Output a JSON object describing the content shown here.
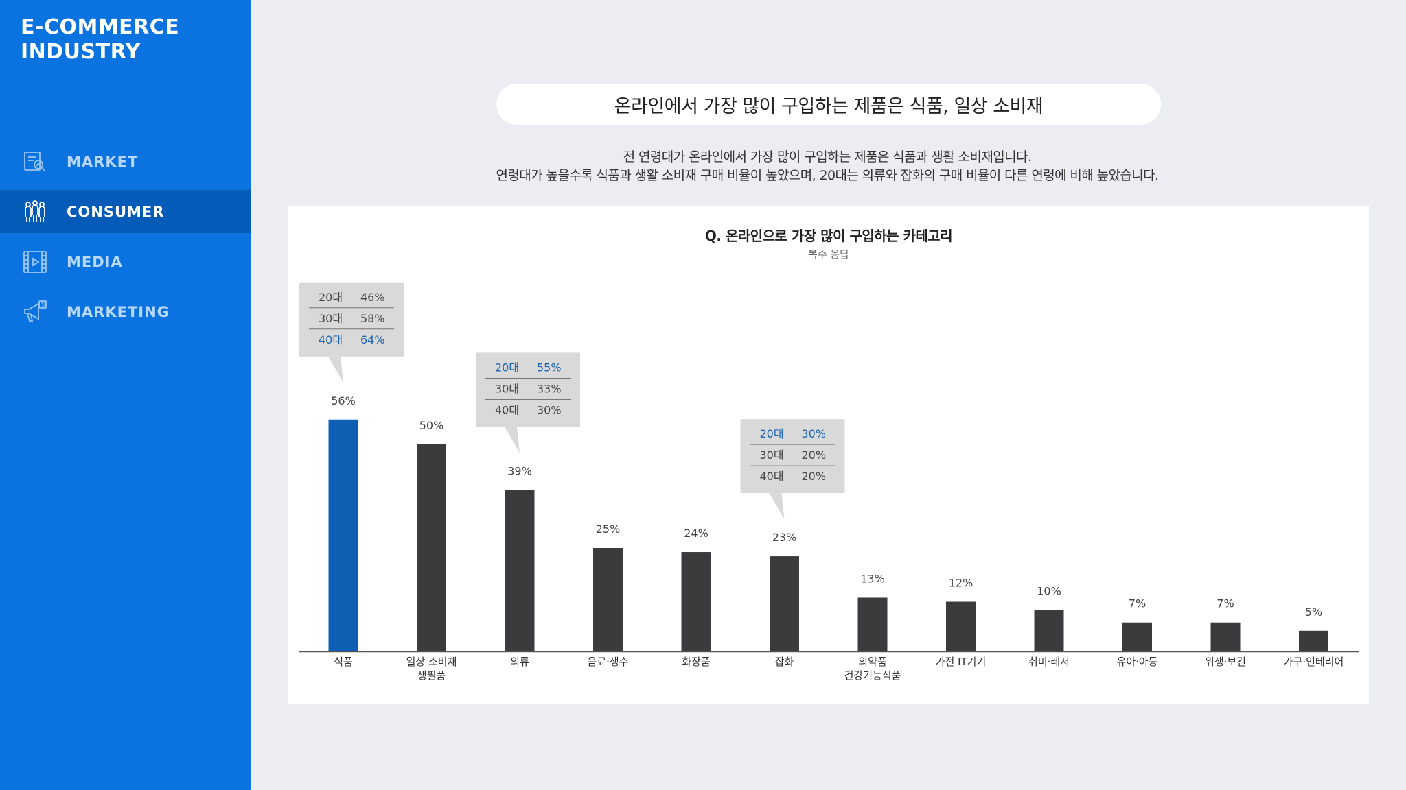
{
  "sidebar": {
    "brand": "E-COMMERCE\nINDUSTRY",
    "items": [
      {
        "label": "MARKET",
        "icon": "market-report-icon",
        "active": false
      },
      {
        "label": "CONSUMER",
        "icon": "consumer-group-icon",
        "active": true
      },
      {
        "label": "MEDIA",
        "icon": "media-video-icon",
        "active": false
      },
      {
        "label": "MARKETING",
        "icon": "megaphone-icon",
        "active": false
      }
    ]
  },
  "headline": "온라인에서 가장 많이 구입하는 제품은 식품, 일상 소비재",
  "description": [
    "전 연령대가 온라인에서 가장 많이 구입하는 제품은 식품과 생활 소비재입니다.",
    "연령대가 높을수록 식품과 생활 소비재 구매 비율이 높았으며, 20대는 의류와 잡화의 구매 비율이 다른 연령에 비해 높았습니다."
  ],
  "colors": {
    "sidebar": "#0a73e0",
    "sidebar_active": "#055bb8",
    "bar": "#3b3b3d",
    "bar_highlight": "#0e5fb4",
    "callout_bg": "#d9d9d9",
    "callout_highlight_text": "#1a63b4",
    "page_bg": "#ecedf2"
  },
  "chart_data": {
    "type": "bar",
    "title": "Q. 온라인으로 가장 많이 구입하는 카테고리",
    "subtitle": "복수 응답",
    "categories": [
      "식품",
      "일상 소비재\n생필품",
      "의류",
      "음료·생수",
      "화장품",
      "잡화",
      "의약품\n건강기능식품",
      "가전 IT기기",
      "취미·레저",
      "유아·아동",
      "위생·보건",
      "가구·인테리어"
    ],
    "values": [
      56,
      50,
      39,
      25,
      24,
      23,
      13,
      12,
      10,
      7,
      7,
      5
    ],
    "value_labels": [
      "56%",
      "50%",
      "39%",
      "25%",
      "24%",
      "23%",
      "13%",
      "12%",
      "10%",
      "7%",
      "7%",
      "5%"
    ],
    "highlight_index": 0,
    "ylim": [
      0,
      60
    ],
    "grid": false,
    "callouts": [
      {
        "category_index": 0,
        "rows": [
          {
            "age": "20대",
            "value": "46%",
            "highlight": false
          },
          {
            "age": "30대",
            "value": "58%",
            "highlight": false
          },
          {
            "age": "40대",
            "value": "64%",
            "highlight": true
          }
        ]
      },
      {
        "category_index": 2,
        "rows": [
          {
            "age": "20대",
            "value": "55%",
            "highlight": true
          },
          {
            "age": "30대",
            "value": "33%",
            "highlight": false
          },
          {
            "age": "40대",
            "value": "30%",
            "highlight": false
          }
        ]
      },
      {
        "category_index": 5,
        "rows": [
          {
            "age": "20대",
            "value": "30%",
            "highlight": true
          },
          {
            "age": "30대",
            "value": "20%",
            "highlight": false
          },
          {
            "age": "40대",
            "value": "20%",
            "highlight": false
          }
        ]
      }
    ]
  }
}
